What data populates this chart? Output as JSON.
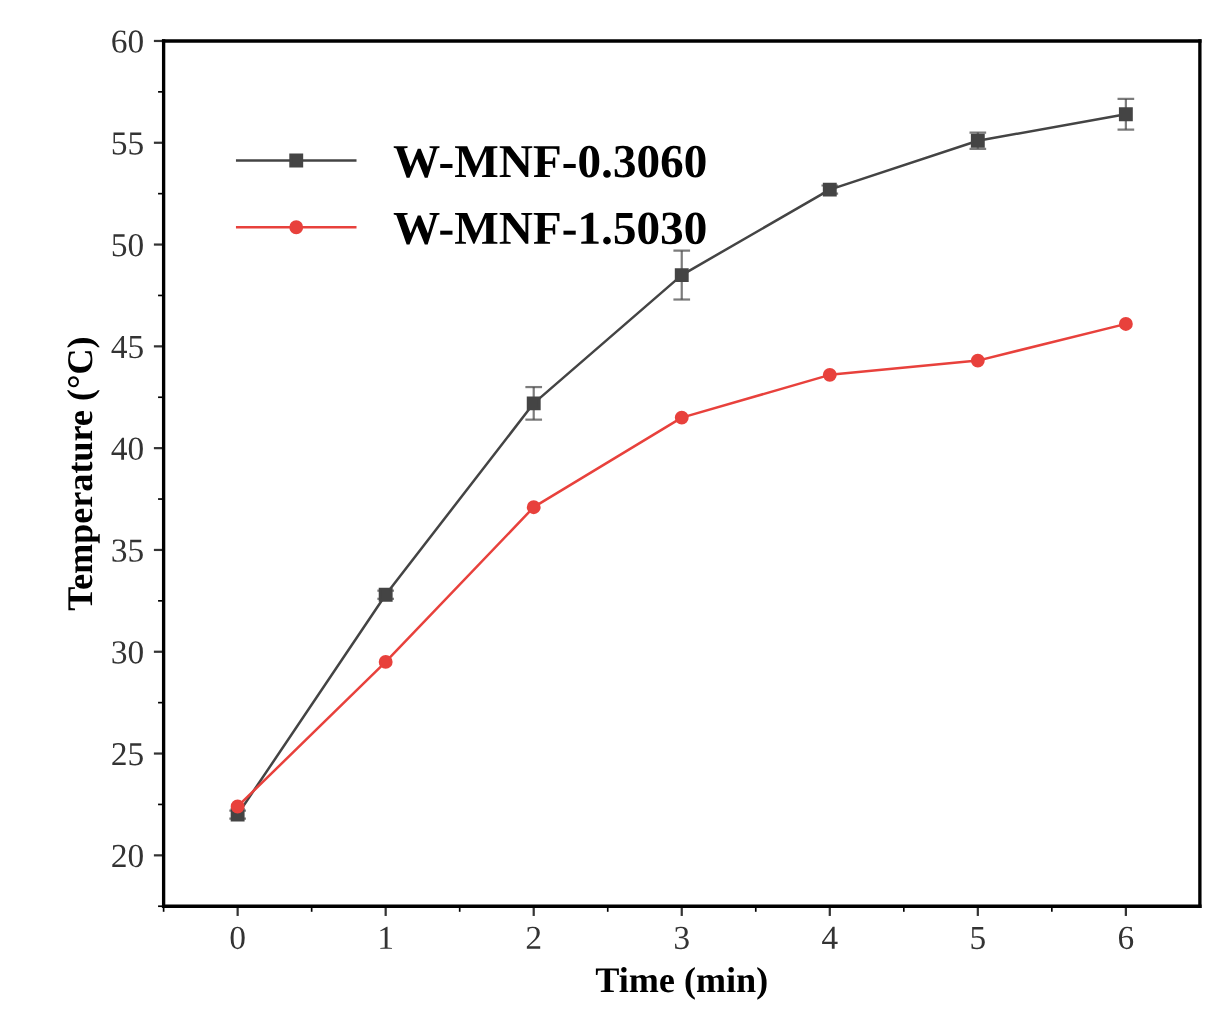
{
  "chart_data": {
    "type": "line",
    "xlabel": "Time (min)",
    "ylabel": "Temperature (°C)",
    "x": [
      0,
      1,
      2,
      3,
      4,
      5,
      6
    ],
    "series": [
      {
        "name": "W-MNF-0.3060",
        "color": "#444444",
        "marker": "square",
        "values": [
          22.0,
          32.8,
          42.2,
          48.5,
          52.7,
          55.1,
          56.4
        ],
        "errors": [
          0.2,
          0.2,
          0.8,
          1.2,
          0.2,
          0.4,
          0.75
        ]
      },
      {
        "name": "W-MNF-1.5030",
        "color": "#e8413c",
        "marker": "circle",
        "values": [
          22.4,
          29.5,
          37.1,
          41.5,
          43.6,
          44.3,
          46.1
        ]
      }
    ],
    "xlim": [
      -0.5,
      6.5
    ],
    "xticks": [
      0,
      1,
      2,
      3,
      4,
      5,
      6
    ],
    "ylim": [
      17.5,
      60
    ],
    "yticks": [
      20,
      25,
      30,
      35,
      40,
      45,
      50,
      55,
      60
    ],
    "grid": false,
    "legend": "top left"
  }
}
